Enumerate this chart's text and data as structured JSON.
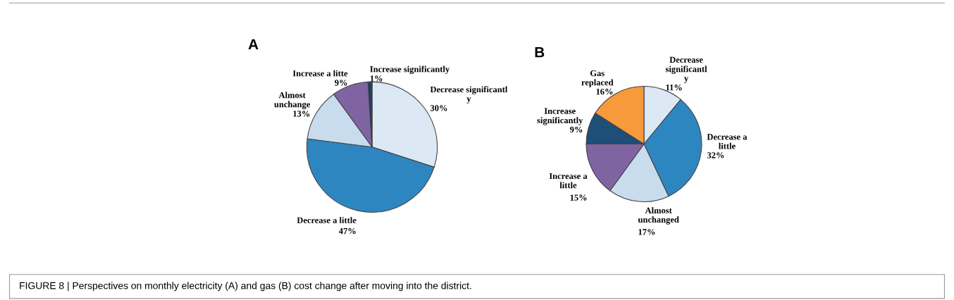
{
  "chart_data": [
    {
      "type": "pie",
      "title": "A",
      "categories": [
        "Decrease significantl\ny",
        "Decrease a little",
        "Almost\nunchange",
        "Increase a litte",
        "Increase significantly"
      ],
      "values": [
        30,
        47,
        13,
        9,
        1
      ],
      "value_labels": [
        "30%",
        "47%",
        "13%",
        "9%",
        "1%"
      ],
      "colors": [
        "#dce8f4",
        "#2e86c1",
        "#c9dcee",
        "#8064a2",
        "#1f3f66"
      ],
      "annotations": [
        "FIGURE 8 | Perspectives on monthly electricity (A) and gas (B) cost change after moving into the district."
      ]
    },
    {
      "type": "pie",
      "title": "B",
      "categories": [
        "Decrease\nsignificantl\ny",
        "Decrease a\nlittle",
        "Almost\nunchanged",
        "Increase a\nlittle",
        "Increase\nsignificantly",
        "Gas\nreplaced"
      ],
      "values": [
        11,
        32,
        17,
        15,
        9,
        16
      ],
      "value_labels": [
        "11%",
        "32%",
        "17%",
        "15%",
        "9%",
        "16%"
      ],
      "colors": [
        "#dce8f4",
        "#2e86c1",
        "#c9dcee",
        "#8064a2",
        "#1f4e79",
        "#f79a3c"
      ]
    }
  ]
}
